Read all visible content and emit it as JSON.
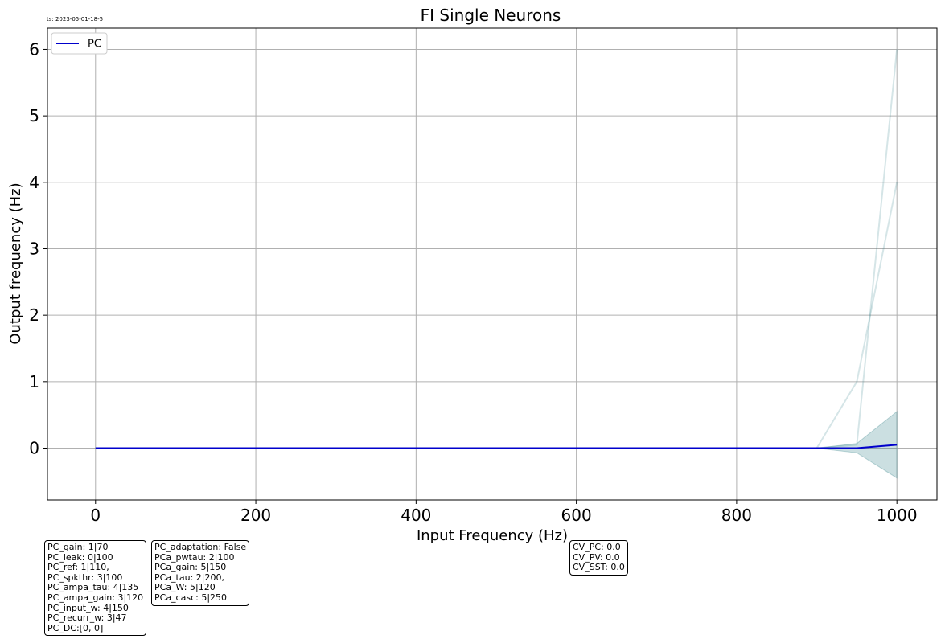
{
  "timestamp": "ts: 2023-05-01-18-5",
  "chart_data": {
    "type": "line",
    "title": "FI Single Neurons",
    "xlabel": "Input Frequency (Hz)",
    "ylabel": "Output frequency (Hz)",
    "xlim": [
      -60,
      1050
    ],
    "ylim": [
      -0.78,
      6.32
    ],
    "xticks": [
      0,
      200,
      400,
      600,
      800,
      1000
    ],
    "yticks": [
      0,
      1,
      2,
      3,
      4,
      5,
      6
    ],
    "grid": true,
    "legend": {
      "position": "top-left",
      "entries": [
        "PC"
      ]
    },
    "x": [
      0,
      50,
      100,
      150,
      200,
      250,
      300,
      350,
      400,
      450,
      500,
      550,
      600,
      650,
      700,
      750,
      800,
      850,
      900,
      950,
      1000
    ],
    "series": [
      {
        "name": "PC",
        "color": "#0000cc",
        "values": [
          0,
          0,
          0,
          0,
          0,
          0,
          0,
          0,
          0,
          0,
          0,
          0,
          0,
          0,
          0,
          0,
          0,
          0,
          0,
          0,
          0.05
        ]
      }
    ],
    "band": {
      "color": "#2f7f86",
      "upper": [
        0,
        0,
        0,
        0,
        0,
        0,
        0,
        0,
        0,
        0,
        0,
        0,
        0,
        0,
        0,
        0,
        0,
        0,
        0,
        0.07,
        0.55
      ],
      "lower": [
        0,
        0,
        0,
        0,
        0,
        0,
        0,
        0,
        0,
        0,
        0,
        0,
        0,
        0,
        0,
        0,
        0,
        0,
        0,
        -0.07,
        -0.45
      ]
    },
    "individual_traces": [
      [
        0,
        0,
        0,
        0,
        0,
        0,
        0,
        0,
        0,
        0,
        0,
        0,
        0,
        0,
        0,
        0,
        0,
        0,
        0,
        1,
        4
      ],
      [
        0,
        0,
        0,
        0,
        0,
        0,
        0,
        0,
        0,
        0,
        0,
        0,
        0,
        0,
        0,
        0,
        0,
        0,
        0,
        0.05,
        6
      ]
    ]
  },
  "info_boxes": [
    {
      "lines": [
        "PC_gain: 1|70",
        "PC_leak: 0|100",
        "PC_ref: 1|110,",
        "PC_spkthr: 3|100",
        "PC_ampa_tau: 4|135",
        "PC_ampa_gain: 3|120",
        "PC_input_w: 4|150",
        "PC_recurr_w: 3|47",
        "PC_DC:[0, 0]"
      ]
    },
    {
      "lines": [
        "PC_adaptation: False",
        "PCa_pwtau: 2|100",
        "PCa_gain: 5|150",
        "PCa_tau: 2|200,",
        "PCa_W: 5|120",
        "PCa_casc: 5|250"
      ]
    },
    {
      "lines": [
        "CV_PC: 0.0",
        "CV_PV: 0.0",
        "CV_SST: 0.0"
      ]
    }
  ]
}
